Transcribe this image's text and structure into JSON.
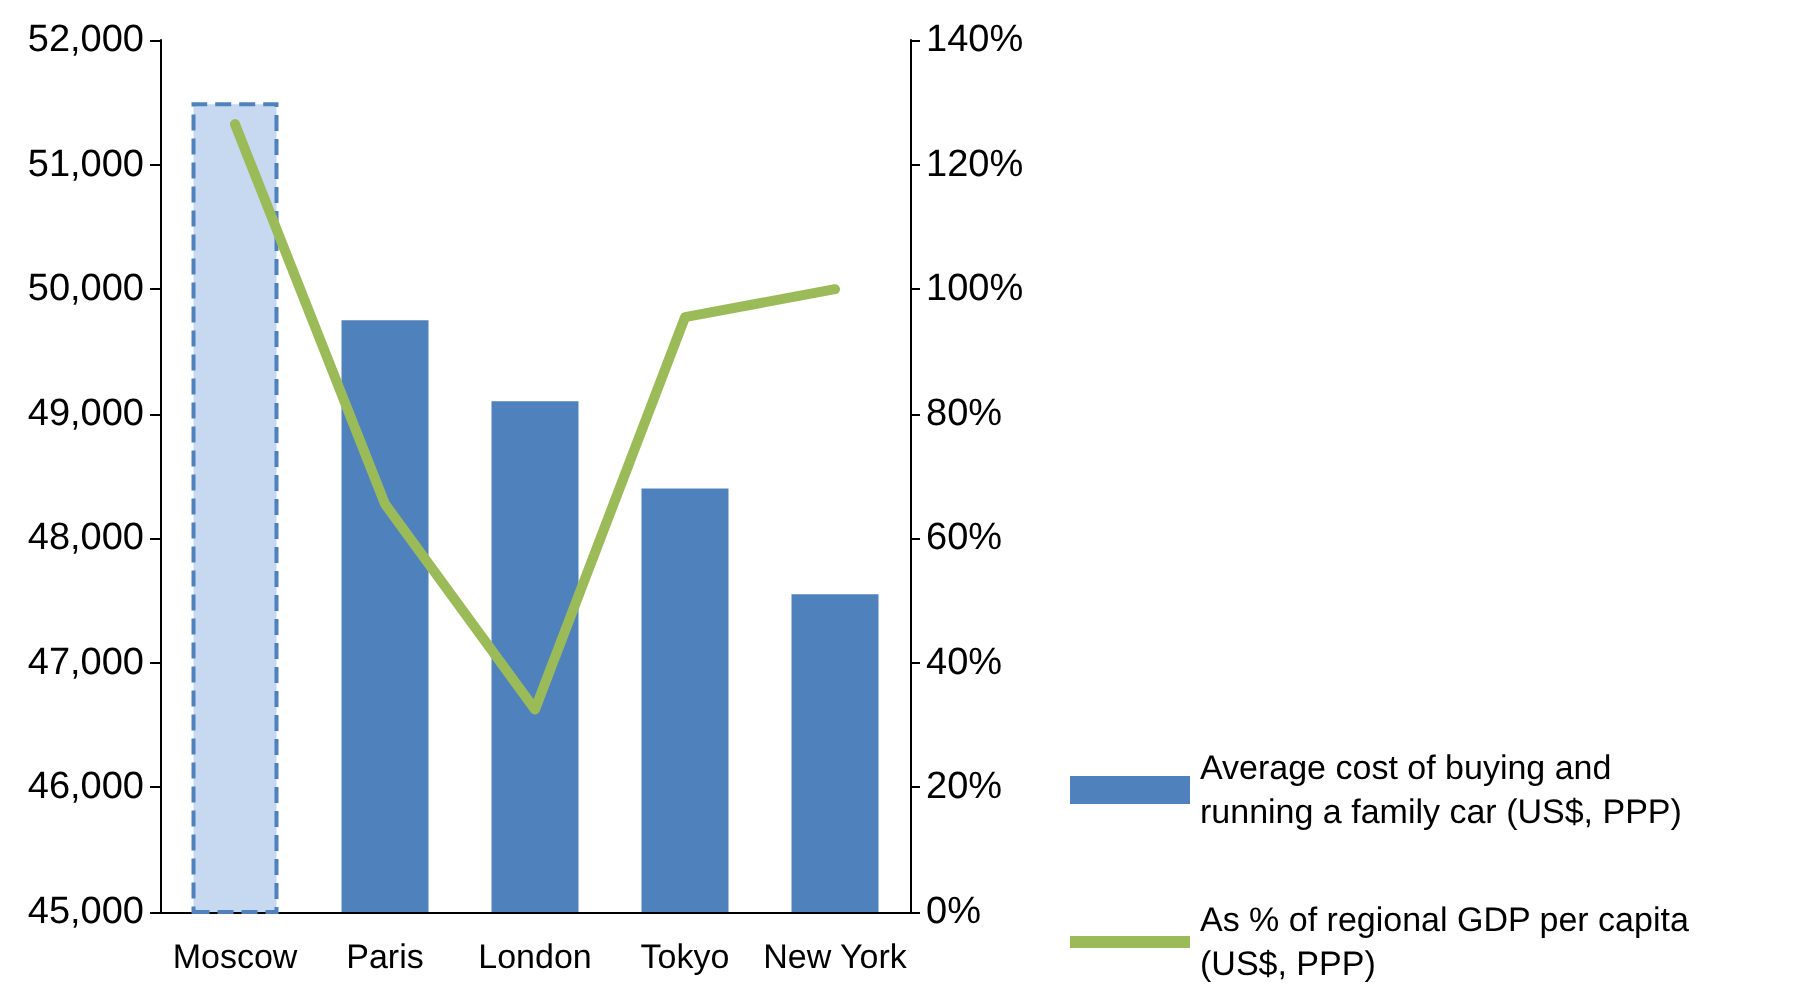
{
  "chart_data": {
    "type": "bar",
    "categories": [
      "Moscow",
      "Paris",
      "London",
      "Tokyo",
      "New York"
    ],
    "series": [
      {
        "name": "Average cost of buying and running a family car (US$, PPP)",
        "color": "#4f81bd",
        "colors": [
          "#c6d9f1",
          "#4f81bd",
          "#4f81bd",
          "#4f81bd",
          "#4f81bd"
        ],
        "values": [
          51500,
          49750,
          49100,
          48400,
          47550
        ]
      },
      {
        "name": "As % of regional GDP per capita (US$, PPP)",
        "type": "line",
        "axis": "y2",
        "color": "#9bbb59",
        "values": [
          126.5,
          65.5,
          32.5,
          95.5,
          100
        ]
      }
    ],
    "ylim": [
      45000,
      52000
    ],
    "yticks": [
      {
        "value": 45000,
        "label": "45,000"
      },
      {
        "value": 46000,
        "label": "46,000"
      },
      {
        "value": 47000,
        "label": "47,000"
      },
      {
        "value": 48000,
        "label": "48,000"
      },
      {
        "value": 49000,
        "label": "49,000"
      },
      {
        "value": 50000,
        "label": "50,000"
      },
      {
        "value": 51000,
        "label": "51,000"
      },
      {
        "value": 52000,
        "label": "52,000"
      }
    ],
    "y2lim": [
      0,
      140
    ],
    "y2ticks": [
      {
        "value": 0,
        "label": "0%"
      },
      {
        "value": 20,
        "label": "20%"
      },
      {
        "value": 40,
        "label": "40%"
      },
      {
        "value": 60,
        "label": "60%"
      },
      {
        "value": 80,
        "label": "80%"
      },
      {
        "value": 100,
        "label": "100%"
      },
      {
        "value": 120,
        "label": "120%"
      },
      {
        "value": 140,
        "label": "140%"
      }
    ],
    "legend": "right",
    "marker": "none",
    "grid": false
  }
}
